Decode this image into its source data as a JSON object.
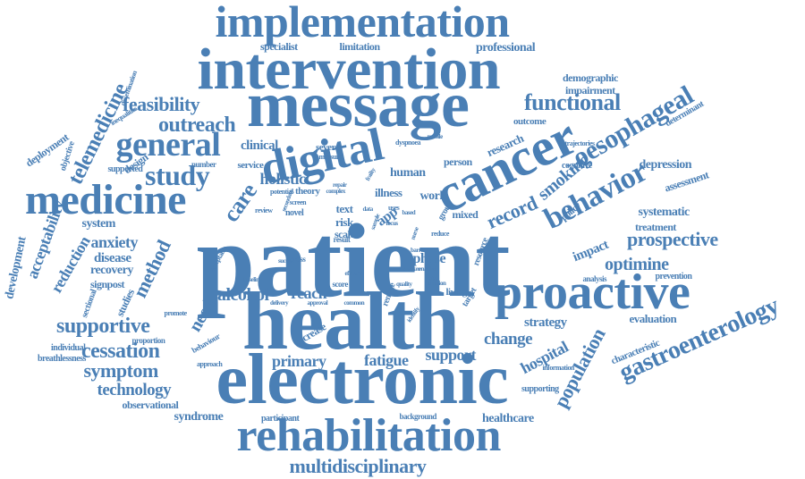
{
  "colors": {
    "word": "#4a7fb5",
    "background": "#ffffff"
  },
  "words": [
    "patient",
    "health",
    "electronic",
    "message",
    "intervention",
    "implementation",
    "rehabilitation",
    "proactive",
    "cancer",
    "digital",
    "medicine",
    "behavior",
    "oesophageal",
    "gastroenterology",
    "multidisciplinary",
    "general",
    "study",
    "care",
    "feasibility",
    "outreach",
    "functional",
    "telemedicine",
    "prospective",
    "record",
    "supportive",
    "cessation",
    "symptom",
    "technology",
    "population",
    "smoking",
    "hospital",
    "change",
    "primary",
    "fatigue",
    "support",
    "optimine",
    "alcohol",
    "reach",
    "need",
    "method",
    "anxiety",
    "reduction",
    "acceptability",
    "development",
    "system",
    "disease",
    "recovery",
    "signpost",
    "holistic",
    "clinical",
    "human",
    "strategy",
    "depression",
    "systematic",
    "treatment",
    "assessment",
    "impact",
    "policy",
    "evaluation",
    "prevention",
    "analysis",
    "characteristic",
    "information",
    "supporting",
    "healthcare",
    "background",
    "participant",
    "syndrome",
    "observational",
    "breathlessness",
    "individual",
    "proportion",
    "behaviour",
    "approach",
    "promote",
    "studies",
    "sectional",
    "deployment",
    "objective",
    "dissemination",
    "inequalities",
    "supported",
    "number",
    "service",
    "design",
    "specialist",
    "limitation",
    "professional",
    "demographic",
    "impairment",
    "outcome",
    "determinant",
    "trajectories",
    "cognitive",
    "research",
    "person",
    "severe",
    "measure",
    "dyspnoea",
    "mobile",
    "theory",
    "potential",
    "illness",
    "work",
    "group",
    "mixed",
    "text",
    "risk",
    "scale",
    "app",
    "phase",
    "screen",
    "cross",
    "score",
    "review",
    "novel",
    "secondary",
    "acceptable",
    "baseline",
    "delivery",
    "increase",
    "living",
    "target",
    "remote",
    "resource",
    "enabled",
    "quality",
    "smoker",
    "barrier",
    "approval",
    "common",
    "complex",
    "repair",
    "data",
    "uses",
    "based",
    "frailty",
    "nurse",
    "result",
    "success",
    "efficacy",
    "identify",
    "function",
    "sample",
    "reduce",
    "focus",
    "aim",
    "used"
  ]
}
